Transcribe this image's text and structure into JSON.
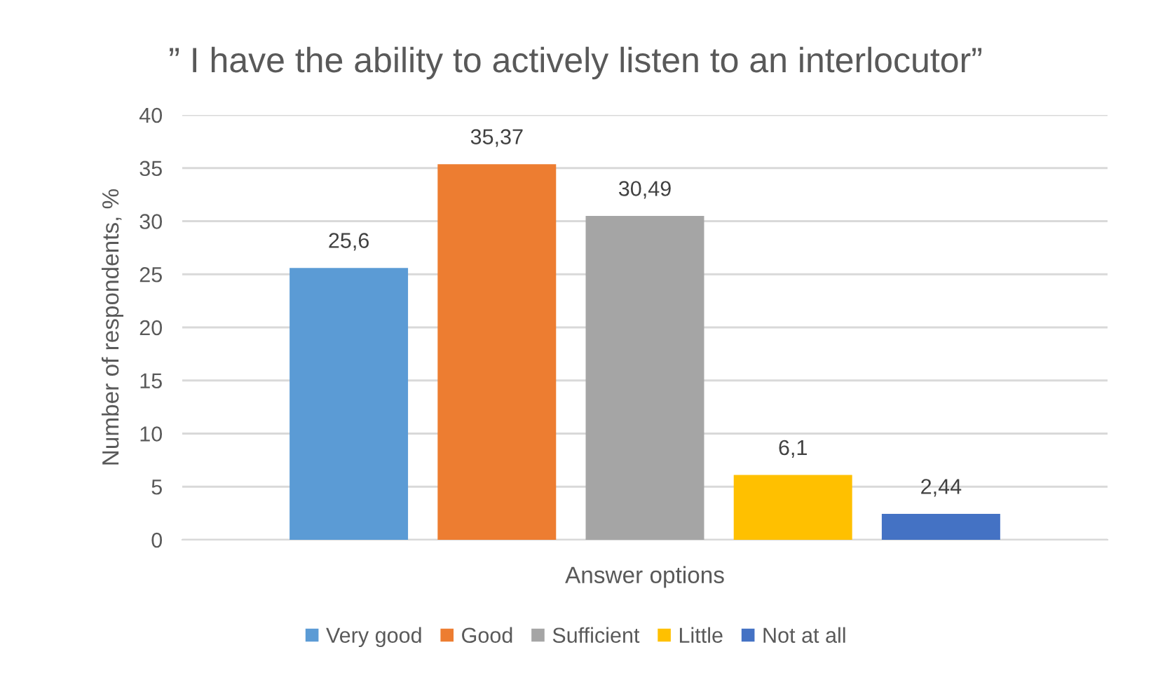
{
  "chart_data": {
    "type": "bar",
    "title": "” I have the ability to actively listen to an interlocutor”",
    "xlabel": "Answer options",
    "ylabel": "Number of respondents, %",
    "categories": [
      null
    ],
    "series": [
      {
        "name": "Very good",
        "color": "#5b9bd5",
        "values": [
          25.6
        ],
        "value_labels": [
          "25,6"
        ]
      },
      {
        "name": "Good",
        "color": "#ed7d31",
        "values": [
          35.37
        ],
        "value_labels": [
          "35,37"
        ]
      },
      {
        "name": "Sufficient",
        "color": "#a5a5a5",
        "values": [
          30.49
        ],
        "value_labels": [
          "30,49"
        ]
      },
      {
        "name": "Little",
        "color": "#ffc000",
        "values": [
          6.1
        ],
        "value_labels": [
          "6,1"
        ]
      },
      {
        "name": "Not at all",
        "color": "#4472c4",
        "values": [
          2.44
        ],
        "value_labels": [
          "2,44"
        ]
      }
    ],
    "ylim": [
      0,
      40
    ],
    "yticks": [
      0,
      5,
      10,
      15,
      20,
      25,
      30,
      35,
      40
    ],
    "grid": "y",
    "legend": "bottom"
  }
}
